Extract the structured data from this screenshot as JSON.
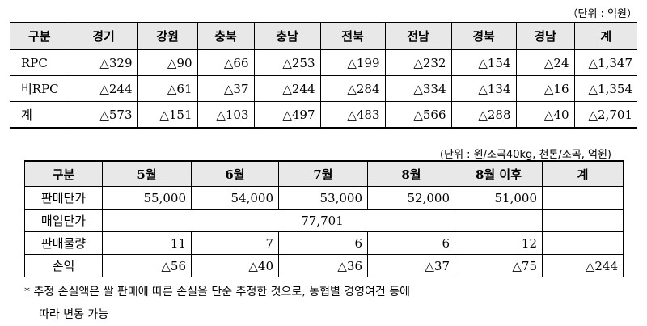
{
  "table1": {
    "unit": "（단위 : 억원）",
    "headers": [
      "구분",
      "경기",
      "강원",
      "충북",
      "충남",
      "전북",
      "전남",
      "경북",
      "경남",
      "계"
    ],
    "rows": [
      [
        "RPC",
        "△329",
        "△90",
        "△66",
        "△253",
        "△199",
        "△232",
        "△154",
        "△24",
        "△1,347"
      ],
      [
        "비RPC",
        "△244",
        "△61",
        "△37",
        "△244",
        "△284",
        "△334",
        "△134",
        "△16",
        "△1,354"
      ],
      [
        "계",
        "△573",
        "△151",
        "△103",
        "△497",
        "△483",
        "△566",
        "△288",
        "△40",
        "△2,701"
      ]
    ]
  },
  "table2": {
    "unit": "(단위 : 원/조곡40kg, 천톤/조곡, 억원)",
    "headers": [
      "구분",
      "5월",
      "6월",
      "7월",
      "8월",
      "8월 이후",
      "계"
    ],
    "sale_price": {
      "label": "판매단가",
      "values": [
        "55,000",
        "54,000",
        "53,000",
        "52,000",
        "51,000",
        ""
      ]
    },
    "purchase_price": {
      "label": "매입단가",
      "value": "77,701"
    },
    "sale_volume": {
      "label": "판매물량",
      "values": [
        "11",
        "7",
        "6",
        "6",
        "12",
        ""
      ]
    },
    "profit_loss": {
      "label": "손익",
      "values": [
        "△56",
        "△40",
        "△36",
        "△37",
        "△75",
        "△244"
      ]
    }
  },
  "note": {
    "line1": "* 추정 손실액은 쌀 판매에 따른 손실을 단순 추정한 것으로, 농협별 경영여건 등에",
    "line2": "따라 변동 가능"
  }
}
